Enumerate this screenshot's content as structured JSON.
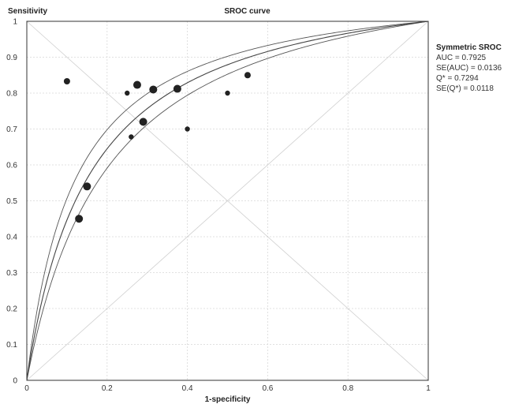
{
  "chart_data": {
    "type": "scatter",
    "title": "SROC curve",
    "xlabel": "1-specificity",
    "ylabel": "Sensitivity",
    "xlim": [
      0,
      1
    ],
    "ylim": [
      0,
      1
    ],
    "grid": true,
    "x_ticks": [
      "0",
      "0.2",
      "0.4",
      "0.6",
      "0.8",
      "1"
    ],
    "y_ticks": [
      "0",
      "0.1",
      "0.2",
      "0.3",
      "0.4",
      "0.5",
      "0.6",
      "0.7",
      "0.8",
      "0.9",
      "1"
    ],
    "points": [
      {
        "x": 0.1,
        "y": 0.833,
        "size": 2
      },
      {
        "x": 0.13,
        "y": 0.45,
        "size": 3
      },
      {
        "x": 0.15,
        "y": 0.54,
        "size": 3
      },
      {
        "x": 0.25,
        "y": 0.8,
        "size": 1
      },
      {
        "x": 0.26,
        "y": 0.678,
        "size": 1
      },
      {
        "x": 0.275,
        "y": 0.823,
        "size": 3
      },
      {
        "x": 0.29,
        "y": 0.72,
        "size": 3
      },
      {
        "x": 0.315,
        "y": 0.81,
        "size": 3
      },
      {
        "x": 0.375,
        "y": 0.812,
        "size": 3
      },
      {
        "x": 0.4,
        "y": 0.7,
        "size": 1
      },
      {
        "x": 0.5,
        "y": 0.8,
        "size": 1
      },
      {
        "x": 0.55,
        "y": 0.85,
        "size": 2
      }
    ],
    "sroc_curve": {
      "q_star": 0.7294,
      "se_q_star": 0.0118
    },
    "stats_title": "Symmetric SROC",
    "stats_lines": [
      "AUC = 0.7925",
      "SE(AUC) = 0.0136",
      "Q* = 0.7294",
      "SE(Q*) = 0.0118"
    ],
    "colors": {
      "points": "#222222",
      "curve": "#555555",
      "grid": "#d8d8d8",
      "axis": "#333333"
    }
  }
}
